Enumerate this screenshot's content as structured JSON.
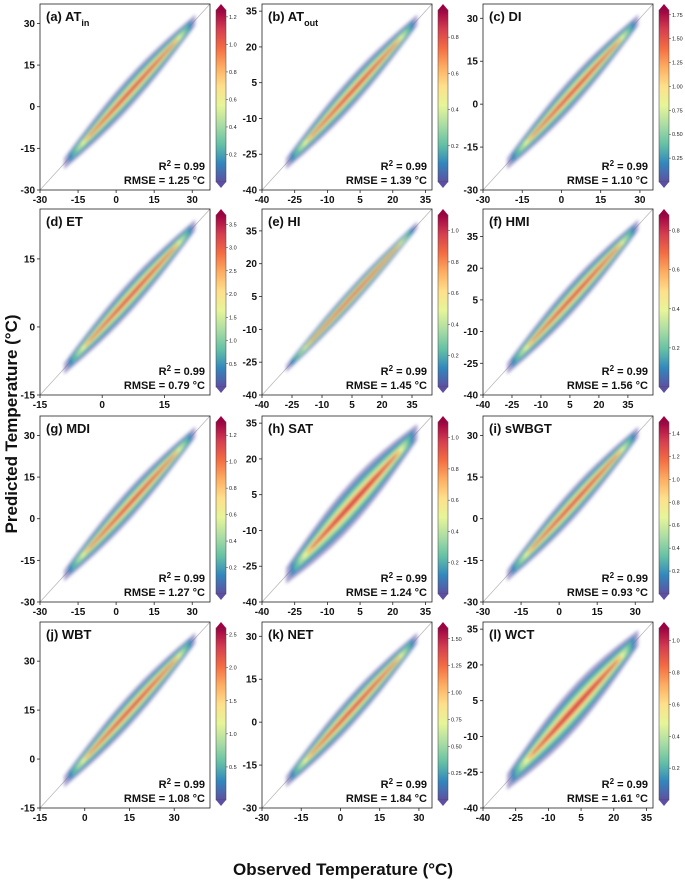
{
  "figure": {
    "xlabel": "Observed Temperature (°C)",
    "ylabel": "Predicted Temperature (°C)",
    "colormap": [
      "#5e4fa2",
      "#3288bd",
      "#66c2a5",
      "#abdda4",
      "#e6f598",
      "#fee08b",
      "#fdae61",
      "#f46d43",
      "#d53e4f",
      "#9e0142"
    ]
  },
  "chart_data": [
    {
      "type": "heatmap",
      "panel": "(a)",
      "name": "AT",
      "sub": "in",
      "xlim": [
        -30,
        37
      ],
      "ylim": [
        -30,
        37
      ],
      "xticks": [
        -30,
        -15,
        0,
        15,
        30
      ],
      "yticks": [
        -30,
        -15,
        0,
        15,
        30
      ],
      "cbar_max": 1.25,
      "cbar_ticks": [
        "0.2",
        "0.4",
        "0.6",
        "0.8",
        "1.0",
        "1.2"
      ],
      "r2": "0.99",
      "rmse": "1.25",
      "spread": "normal"
    },
    {
      "type": "heatmap",
      "panel": "(b)",
      "name": "AT",
      "sub": "out",
      "xlim": [
        -40,
        38
      ],
      "ylim": [
        -40,
        38
      ],
      "xticks": [
        -40,
        -25,
        -10,
        5,
        20,
        35
      ],
      "yticks": [
        -40,
        -25,
        -10,
        5,
        20,
        35
      ],
      "cbar_max": 0.95,
      "cbar_ticks": [
        "0.2",
        "0.4",
        "0.6",
        "0.8"
      ],
      "r2": "0.99",
      "rmse": "1.39",
      "spread": "normal"
    },
    {
      "type": "heatmap",
      "panel": "(c)",
      "name": "DI",
      "sub": "",
      "xlim": [
        -30,
        35
      ],
      "ylim": [
        -30,
        35
      ],
      "xticks": [
        -30,
        -15,
        0,
        15,
        30
      ],
      "yticks": [
        -30,
        -15,
        0,
        15,
        30
      ],
      "cbar_max": 1.8,
      "cbar_ticks": [
        "0.25",
        "0.50",
        "0.75",
        "1.00",
        "1.25",
        "1.50",
        "1.75"
      ],
      "r2": "0.99",
      "rmse": "1.10",
      "spread": "normal"
    },
    {
      "type": "heatmap",
      "panel": "(d)",
      "name": "ET",
      "sub": "",
      "xlim": [
        -15,
        26
      ],
      "ylim": [
        -15,
        26
      ],
      "xticks": [
        -15,
        0,
        15
      ],
      "yticks": [
        -15,
        0,
        15
      ],
      "cbar_max": 3.7,
      "cbar_ticks": [
        "0.5",
        "1.0",
        "1.5",
        "2.0",
        "2.5",
        "3.0",
        "3.5"
      ],
      "r2": "0.99",
      "rmse": "0.79",
      "spread": "normal"
    },
    {
      "type": "heatmap",
      "panel": "(e)",
      "name": "HI",
      "sub": "",
      "xlim": [
        -40,
        45
      ],
      "ylim": [
        -40,
        45
      ],
      "xticks": [
        -40,
        -25,
        -10,
        5,
        20,
        35
      ],
      "yticks": [
        -40,
        -25,
        -10,
        5,
        20,
        35
      ],
      "cbar_max": 1.1,
      "cbar_ticks": [
        "0.2",
        "0.4",
        "0.6",
        "0.8",
        "1.0"
      ],
      "r2": "0.99",
      "rmse": "1.45",
      "spread": "narrow"
    },
    {
      "type": "heatmap",
      "panel": "(f)",
      "name": "HMI",
      "sub": "",
      "xlim": [
        -40,
        48
      ],
      "ylim": [
        -40,
        48
      ],
      "xticks": [
        -40,
        -25,
        -10,
        5,
        20,
        35
      ],
      "yticks": [
        -40,
        -25,
        -10,
        5,
        20,
        35
      ],
      "cbar_max": 0.88,
      "cbar_ticks": [
        "0.2",
        "0.4",
        "0.6",
        "0.8"
      ],
      "r2": "0.99",
      "rmse": "1.56",
      "spread": "normal"
    },
    {
      "type": "heatmap",
      "panel": "(g)",
      "name": "MDI",
      "sub": "",
      "xlim": [
        -30,
        37
      ],
      "ylim": [
        -30,
        37
      ],
      "xticks": [
        -30,
        -15,
        0,
        15,
        30
      ],
      "yticks": [
        -30,
        -15,
        0,
        15,
        30
      ],
      "cbar_max": 1.3,
      "cbar_ticks": [
        "0.2",
        "0.4",
        "0.6",
        "0.8",
        "1.0",
        "1.2"
      ],
      "r2": "0.99",
      "rmse": "1.27",
      "spread": "normal"
    },
    {
      "type": "heatmap",
      "panel": "(h)",
      "name": "SAT",
      "sub": "",
      "xlim": [
        -40,
        38
      ],
      "ylim": [
        -40,
        38
      ],
      "xticks": [
        -40,
        -25,
        -10,
        5,
        20,
        35
      ],
      "yticks": [
        -40,
        -25,
        -10,
        5,
        20,
        35
      ],
      "cbar_max": 1.1,
      "cbar_ticks": [
        "0.2",
        "0.4",
        "0.6",
        "0.8",
        "1.0"
      ],
      "r2": "0.99",
      "rmse": "1.24",
      "spread": "wide"
    },
    {
      "type": "heatmap",
      "panel": "(i)",
      "name": "sWBGT",
      "sub": "",
      "xlim": [
        -30,
        37
      ],
      "ylim": [
        -30,
        37
      ],
      "xticks": [
        -30,
        -15,
        0,
        15,
        30
      ],
      "yticks": [
        -30,
        -15,
        0,
        15,
        30
      ],
      "cbar_max": 1.5,
      "cbar_ticks": [
        "0.2",
        "0.4",
        "0.6",
        "0.8",
        "1.0",
        "1.2",
        "1.4"
      ],
      "r2": "0.99",
      "rmse": "0.93",
      "spread": "normal"
    },
    {
      "type": "heatmap",
      "panel": "(j)",
      "name": "WBT",
      "sub": "",
      "xlim": [
        -15,
        42
      ],
      "ylim": [
        -15,
        42
      ],
      "xticks": [
        -15,
        0,
        15,
        30
      ],
      "yticks": [
        -15,
        0,
        15,
        30
      ],
      "cbar_max": 2.6,
      "cbar_ticks": [
        "0.5",
        "1.0",
        "1.5",
        "2.0",
        "2.5"
      ],
      "r2": "0.99",
      "rmse": "1.08",
      "spread": "normal"
    },
    {
      "type": "heatmap",
      "panel": "(k)",
      "name": "NET",
      "sub": "",
      "xlim": [
        -30,
        35
      ],
      "ylim": [
        -30,
        35
      ],
      "xticks": [
        -30,
        -15,
        0,
        15,
        30
      ],
      "yticks": [
        -30,
        -15,
        0,
        15,
        30
      ],
      "cbar_max": 1.6,
      "cbar_ticks": [
        "0.25",
        "0.50",
        "0.75",
        "1.00",
        "1.25",
        "1.50"
      ],
      "r2": "0.99",
      "rmse": "1.84",
      "spread": "normal"
    },
    {
      "type": "heatmap",
      "panel": "(l)",
      "name": "WCT",
      "sub": "",
      "xlim": [
        -40,
        38
      ],
      "ylim": [
        -40,
        38
      ],
      "xticks": [
        -40,
        -25,
        -10,
        5,
        20,
        35
      ],
      "yticks": [
        -40,
        -25,
        -10,
        5,
        20,
        35
      ],
      "cbar_max": 1.08,
      "cbar_ticks": [
        "0.2",
        "0.4",
        "0.6",
        "0.8",
        "1.0"
      ],
      "r2": "0.99",
      "rmse": "1.61",
      "spread": "wide"
    }
  ]
}
